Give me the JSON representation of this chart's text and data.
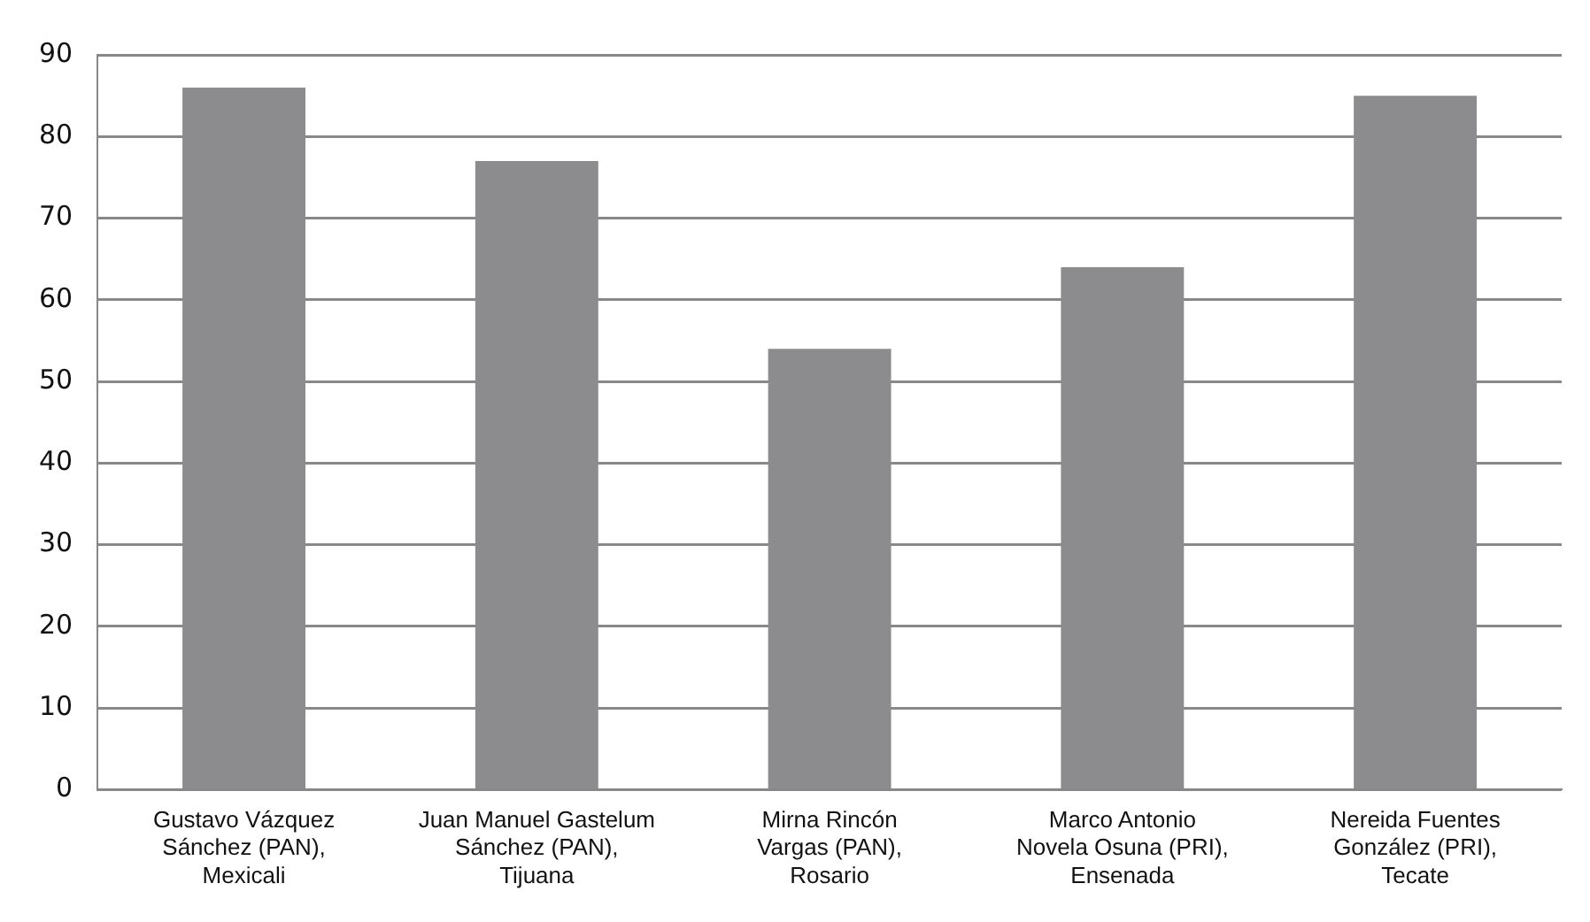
{
  "chart_data": {
    "type": "bar",
    "categories": [
      "Gustavo Vázquez\nSánchez (PAN),\nMexicali",
      "Juan Manuel Gastelum\nSánchez (PAN),\nTijuana",
      "Mirna Rincón\nVargas (PAN),\nRosario",
      "Marco Antonio\nNovela Osuna (PRI),\nEnsenada",
      "Nereida Fuentes\nGonzález (PRI),\nTecate"
    ],
    "values": [
      86,
      77,
      54,
      64,
      85
    ],
    "color": "#8c8c8e",
    "ylim": [
      0,
      90
    ],
    "yticks": [
      0,
      10,
      20,
      30,
      40,
      50,
      60,
      70,
      80,
      90
    ],
    "grid": "y",
    "legend": false
  }
}
